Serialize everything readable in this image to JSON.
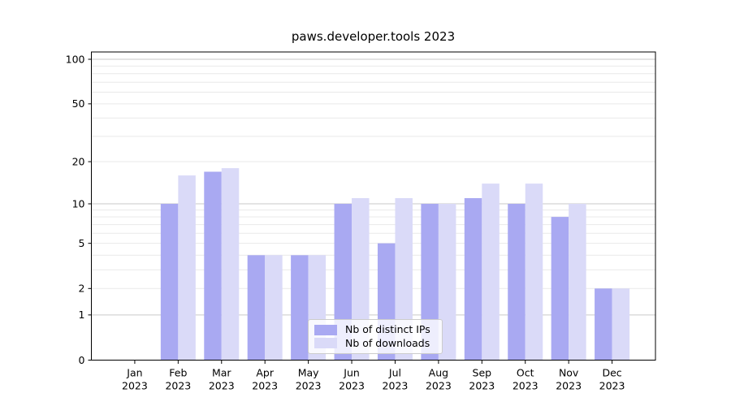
{
  "chart_data": {
    "type": "bar",
    "title": "paws.developer.tools 2023",
    "categories": [
      "Jan",
      "Feb",
      "Mar",
      "Apr",
      "May",
      "Jun",
      "Jul",
      "Aug",
      "Sep",
      "Oct",
      "Nov",
      "Dec"
    ],
    "category_year": "2023",
    "series": [
      {
        "name": "Nb of distinct IPs",
        "color": "#a9a9f2",
        "values": [
          0,
          10,
          17,
          4,
          4,
          10,
          5,
          10,
          11,
          10,
          8,
          2
        ]
      },
      {
        "name": "Nb of downloads",
        "color": "#dadaf8",
        "values": [
          0,
          16,
          18,
          4,
          4,
          11,
          11,
          10,
          14,
          14,
          10,
          2
        ]
      }
    ],
    "yscale": "log1p",
    "ylim": [
      0,
      112
    ],
    "ytick_labels": [
      0,
      1,
      2,
      5,
      10,
      20,
      50,
      100
    ],
    "major_gridlines": [
      1,
      10,
      100
    ],
    "minor_gridlines": [
      2,
      3,
      4,
      5,
      6,
      7,
      8,
      9,
      20,
      30,
      40,
      50,
      60,
      70,
      80,
      90
    ],
    "grid": true,
    "legend_position": "lower center",
    "axis_color": "#000000",
    "major_grid_color": "#c9c9c9",
    "minor_grid_color": "#e9e9e9",
    "text_color": "#000000"
  }
}
